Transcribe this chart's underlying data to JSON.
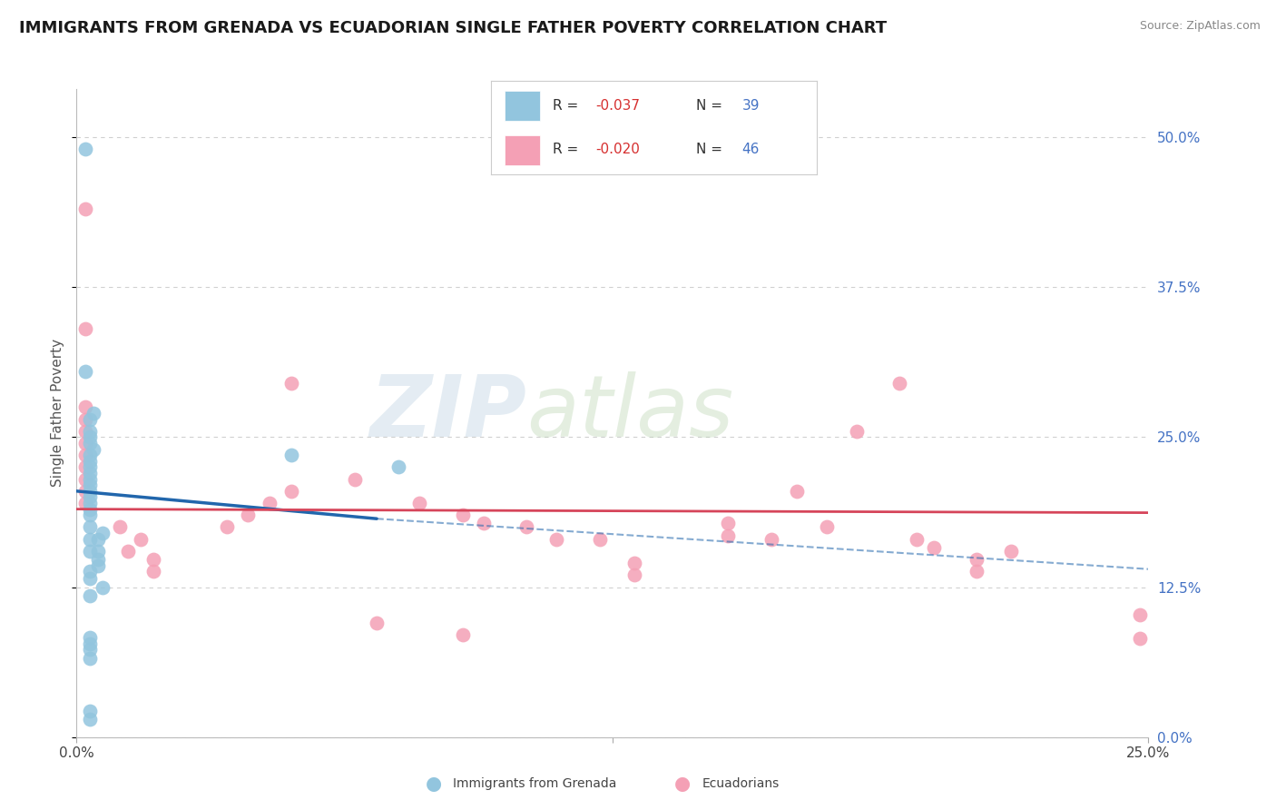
{
  "title": "IMMIGRANTS FROM GRENADA VS ECUADORIAN SINGLE FATHER POVERTY CORRELATION CHART",
  "source": "Source: ZipAtlas.com",
  "ylabel": "Single Father Poverty",
  "yticks_labels": [
    "0.0%",
    "12.5%",
    "25.0%",
    "37.5%",
    "50.0%"
  ],
  "ytick_vals": [
    0.0,
    0.125,
    0.25,
    0.375,
    0.5
  ],
  "xlim": [
    0.0,
    0.25
  ],
  "ylim": [
    0.0,
    0.54
  ],
  "legend_r1": "-0.037",
  "legend_n1": "39",
  "legend_r2": "-0.020",
  "legend_n2": "46",
  "blue_color": "#92c5de",
  "pink_color": "#f4a0b5",
  "blue_line_color": "#2166ac",
  "pink_line_color": "#d6455a",
  "blue_scatter": [
    [
      0.002,
      0.49
    ],
    [
      0.002,
      0.305
    ],
    [
      0.004,
      0.27
    ],
    [
      0.003,
      0.265
    ],
    [
      0.003,
      0.255
    ],
    [
      0.003,
      0.25
    ],
    [
      0.003,
      0.245
    ],
    [
      0.004,
      0.24
    ],
    [
      0.003,
      0.235
    ],
    [
      0.003,
      0.23
    ],
    [
      0.003,
      0.225
    ],
    [
      0.003,
      0.22
    ],
    [
      0.003,
      0.215
    ],
    [
      0.003,
      0.21
    ],
    [
      0.003,
      0.205
    ],
    [
      0.003,
      0.2
    ],
    [
      0.003,
      0.195
    ],
    [
      0.05,
      0.235
    ],
    [
      0.075,
      0.225
    ],
    [
      0.006,
      0.17
    ],
    [
      0.005,
      0.165
    ],
    [
      0.005,
      0.155
    ],
    [
      0.005,
      0.148
    ],
    [
      0.005,
      0.143
    ],
    [
      0.003,
      0.138
    ],
    [
      0.003,
      0.132
    ],
    [
      0.006,
      0.125
    ],
    [
      0.003,
      0.118
    ],
    [
      0.003,
      0.083
    ],
    [
      0.003,
      0.078
    ],
    [
      0.003,
      0.073
    ],
    [
      0.003,
      0.066
    ],
    [
      0.003,
      0.022
    ],
    [
      0.003,
      0.015
    ],
    [
      0.003,
      0.155
    ],
    [
      0.003,
      0.165
    ],
    [
      0.003,
      0.175
    ],
    [
      0.003,
      0.185
    ],
    [
      0.003,
      0.19
    ]
  ],
  "pink_scatter": [
    [
      0.002,
      0.44
    ],
    [
      0.002,
      0.34
    ],
    [
      0.05,
      0.295
    ],
    [
      0.002,
      0.275
    ],
    [
      0.002,
      0.265
    ],
    [
      0.002,
      0.255
    ],
    [
      0.002,
      0.245
    ],
    [
      0.002,
      0.235
    ],
    [
      0.002,
      0.225
    ],
    [
      0.002,
      0.215
    ],
    [
      0.002,
      0.205
    ],
    [
      0.002,
      0.195
    ],
    [
      0.065,
      0.215
    ],
    [
      0.05,
      0.205
    ],
    [
      0.045,
      0.195
    ],
    [
      0.04,
      0.185
    ],
    [
      0.035,
      0.175
    ],
    [
      0.01,
      0.175
    ],
    [
      0.015,
      0.165
    ],
    [
      0.012,
      0.155
    ],
    [
      0.018,
      0.148
    ],
    [
      0.018,
      0.138
    ],
    [
      0.08,
      0.195
    ],
    [
      0.09,
      0.185
    ],
    [
      0.095,
      0.178
    ],
    [
      0.105,
      0.175
    ],
    [
      0.112,
      0.165
    ],
    [
      0.122,
      0.165
    ],
    [
      0.152,
      0.178
    ],
    [
      0.152,
      0.168
    ],
    [
      0.162,
      0.165
    ],
    [
      0.168,
      0.205
    ],
    [
      0.175,
      0.175
    ],
    [
      0.182,
      0.255
    ],
    [
      0.192,
      0.295
    ],
    [
      0.196,
      0.165
    ],
    [
      0.2,
      0.158
    ],
    [
      0.21,
      0.148
    ],
    [
      0.21,
      0.138
    ],
    [
      0.218,
      0.155
    ],
    [
      0.07,
      0.095
    ],
    [
      0.09,
      0.085
    ],
    [
      0.13,
      0.135
    ],
    [
      0.13,
      0.145
    ],
    [
      0.248,
      0.082
    ],
    [
      0.248,
      0.102
    ]
  ],
  "watermark_zip": "ZIP",
  "watermark_atlas": "atlas",
  "background_color": "#ffffff",
  "grid_color": "#d0d0d0"
}
